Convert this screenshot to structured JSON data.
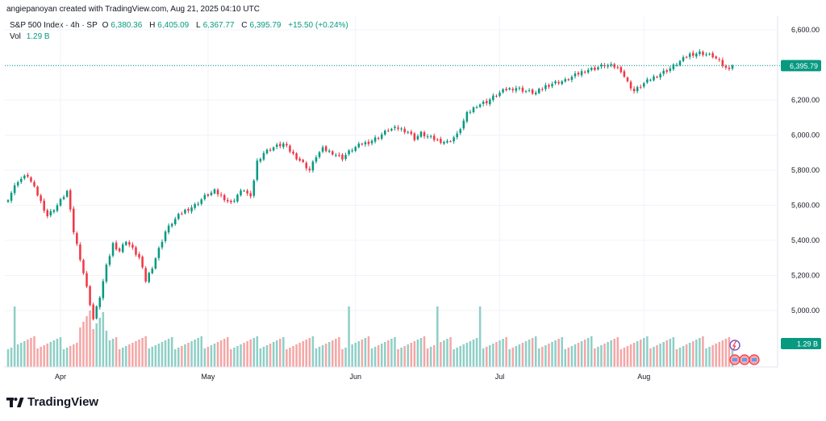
{
  "attribution": "angiepanoyan created with TradingView.com, Aug 21, 2025 04:10 UTC",
  "legend": {
    "symbol": "S&P 500 Index · 4h · SP",
    "o_label": "O",
    "o_value": "6,380.36",
    "h_label": "H",
    "h_value": "6,405.09",
    "l_label": "L",
    "l_value": "6,367.77",
    "c_label": "C",
    "c_value": "6,395.79",
    "change": "+15.50 (+0.24%)"
  },
  "volume_legend": {
    "label": "Vol",
    "value": "1.29 B"
  },
  "brand": {
    "name": "TradingView",
    "icon": "tradingview-logo-icon"
  },
  "colors": {
    "up": "#089981",
    "down": "#f23645",
    "up_volume": "#8fcfc7",
    "down_volume": "#f5a6a6",
    "grid": "#f0f3fa"
  },
  "chart_data": {
    "type": "candlestick",
    "title": "S&P 500 Index · 4h · SP",
    "y_axis": {
      "ylim": [
        4770,
        6630
      ],
      "ticks": [
        5000,
        5200,
        5400,
        5600,
        5800,
        6000,
        6200,
        6400,
        6600
      ],
      "tick_labels": [
        "5,000.00",
        "5,200.00",
        "5,400.00",
        "5,600.00",
        "5,800.00",
        "6,000.00",
        "6,200.00",
        "6,400.00",
        "6,600.00"
      ],
      "current_price": 6395.79,
      "current_price_label": "6,395.79",
      "volume_label": "1.29 B",
      "position": "right"
    },
    "x_axis": {
      "tick_labels": [
        "Apr",
        "May",
        "Jun",
        "Jul",
        "Aug"
      ],
      "tick_index": [
        16,
        61,
        106,
        150,
        194
      ]
    },
    "grid": true,
    "anchors": [
      [
        0,
        5640
      ],
      [
        3,
        5740
      ],
      [
        6,
        5770
      ],
      [
        9,
        5660
      ],
      [
        12,
        5540
      ],
      [
        15,
        5600
      ],
      [
        18,
        5680
      ],
      [
        20,
        5450
      ],
      [
        22,
        5300
      ],
      [
        24,
        5130
      ],
      [
        26,
        4950
      ],
      [
        28,
        5080
      ],
      [
        30,
        5250
      ],
      [
        32,
        5380
      ],
      [
        34,
        5340
      ],
      [
        36,
        5400
      ],
      [
        38,
        5350
      ],
      [
        40,
        5300
      ],
      [
        42,
        5170
      ],
      [
        44,
        5250
      ],
      [
        46,
        5350
      ],
      [
        48,
        5450
      ],
      [
        50,
        5500
      ],
      [
        52,
        5540
      ],
      [
        54,
        5570
      ],
      [
        57,
        5600
      ],
      [
        60,
        5650
      ],
      [
        63,
        5680
      ],
      [
        66,
        5640
      ],
      [
        68,
        5610
      ],
      [
        70,
        5660
      ],
      [
        72,
        5690
      ],
      [
        74,
        5640
      ],
      [
        76,
        5850
      ],
      [
        78,
        5900
      ],
      [
        81,
        5930
      ],
      [
        84,
        5950
      ],
      [
        87,
        5890
      ],
      [
        90,
        5840
      ],
      [
        92,
        5800
      ],
      [
        94,
        5880
      ],
      [
        96,
        5920
      ],
      [
        99,
        5900
      ],
      [
        102,
        5870
      ],
      [
        105,
        5920
      ],
      [
        108,
        5950
      ],
      [
        110,
        5960
      ],
      [
        113,
        5990
      ],
      [
        116,
        6030
      ],
      [
        119,
        6040
      ],
      [
        122,
        6020
      ],
      [
        124,
        5980
      ],
      [
        126,
        6010
      ],
      [
        128,
        5990
      ],
      [
        131,
        5970
      ],
      [
        134,
        5960
      ],
      [
        137,
        6000
      ],
      [
        140,
        6120
      ],
      [
        143,
        6170
      ],
      [
        146,
        6190
      ],
      [
        149,
        6230
      ],
      [
        152,
        6260
      ],
      [
        155,
        6270
      ],
      [
        158,
        6250
      ],
      [
        161,
        6240
      ],
      [
        164,
        6280
      ],
      [
        167,
        6300
      ],
      [
        170,
        6310
      ],
      [
        173,
        6340
      ],
      [
        176,
        6370
      ],
      [
        179,
        6380
      ],
      [
        182,
        6400
      ],
      [
        185,
        6390
      ],
      [
        187,
        6370
      ],
      [
        189,
        6300
      ],
      [
        191,
        6250
      ],
      [
        193,
        6280
      ],
      [
        196,
        6320
      ],
      [
        199,
        6350
      ],
      [
        202,
        6380
      ],
      [
        205,
        6420
      ],
      [
        208,
        6460
      ],
      [
        211,
        6470
      ],
      [
        213,
        6460
      ],
      [
        215,
        6450
      ],
      [
        217,
        6420
      ],
      [
        219,
        6380
      ],
      [
        221,
        6396
      ]
    ]
  }
}
